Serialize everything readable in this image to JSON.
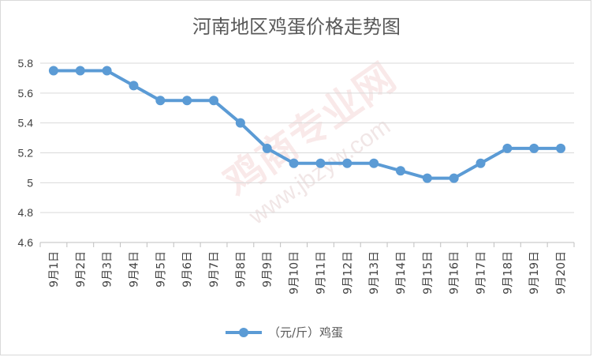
{
  "chart_data": {
    "type": "line",
    "title": "河南地区鸡蛋价格走势图",
    "categories": [
      "9月1日",
      "9月2日",
      "9月3日",
      "9月4日",
      "9月5日",
      "9月6日",
      "9月7日",
      "9月8日",
      "9月9日",
      "9月10日",
      "9月11日",
      "9月12日",
      "9月13日",
      "9月14日",
      "9月15日",
      "9月16日",
      "9月17日",
      "9月18日",
      "9月19日",
      "9月20日"
    ],
    "series": [
      {
        "name": "（元/斤）鸡蛋",
        "color": "#5b9bd5",
        "values": [
          5.75,
          5.75,
          5.75,
          5.65,
          5.55,
          5.55,
          5.55,
          5.4,
          5.23,
          5.13,
          5.13,
          5.13,
          5.13,
          5.08,
          5.03,
          5.03,
          5.13,
          5.23,
          5.23,
          5.23
        ]
      }
    ],
    "ylim": [
      4.6,
      5.8
    ],
    "yticks": [
      "5.8",
      "5.6",
      "5.4",
      "5.2",
      "5",
      "4.8",
      "4.6"
    ],
    "ytick_values": [
      5.8,
      5.6,
      5.4,
      5.2,
      5.0,
      4.8,
      4.6
    ],
    "grid": true,
    "legend_position": "bottom",
    "xlabel": "",
    "ylabel": ""
  },
  "watermark": {
    "main": "鸡商专业网",
    "url": "www.jbzyw.com"
  }
}
